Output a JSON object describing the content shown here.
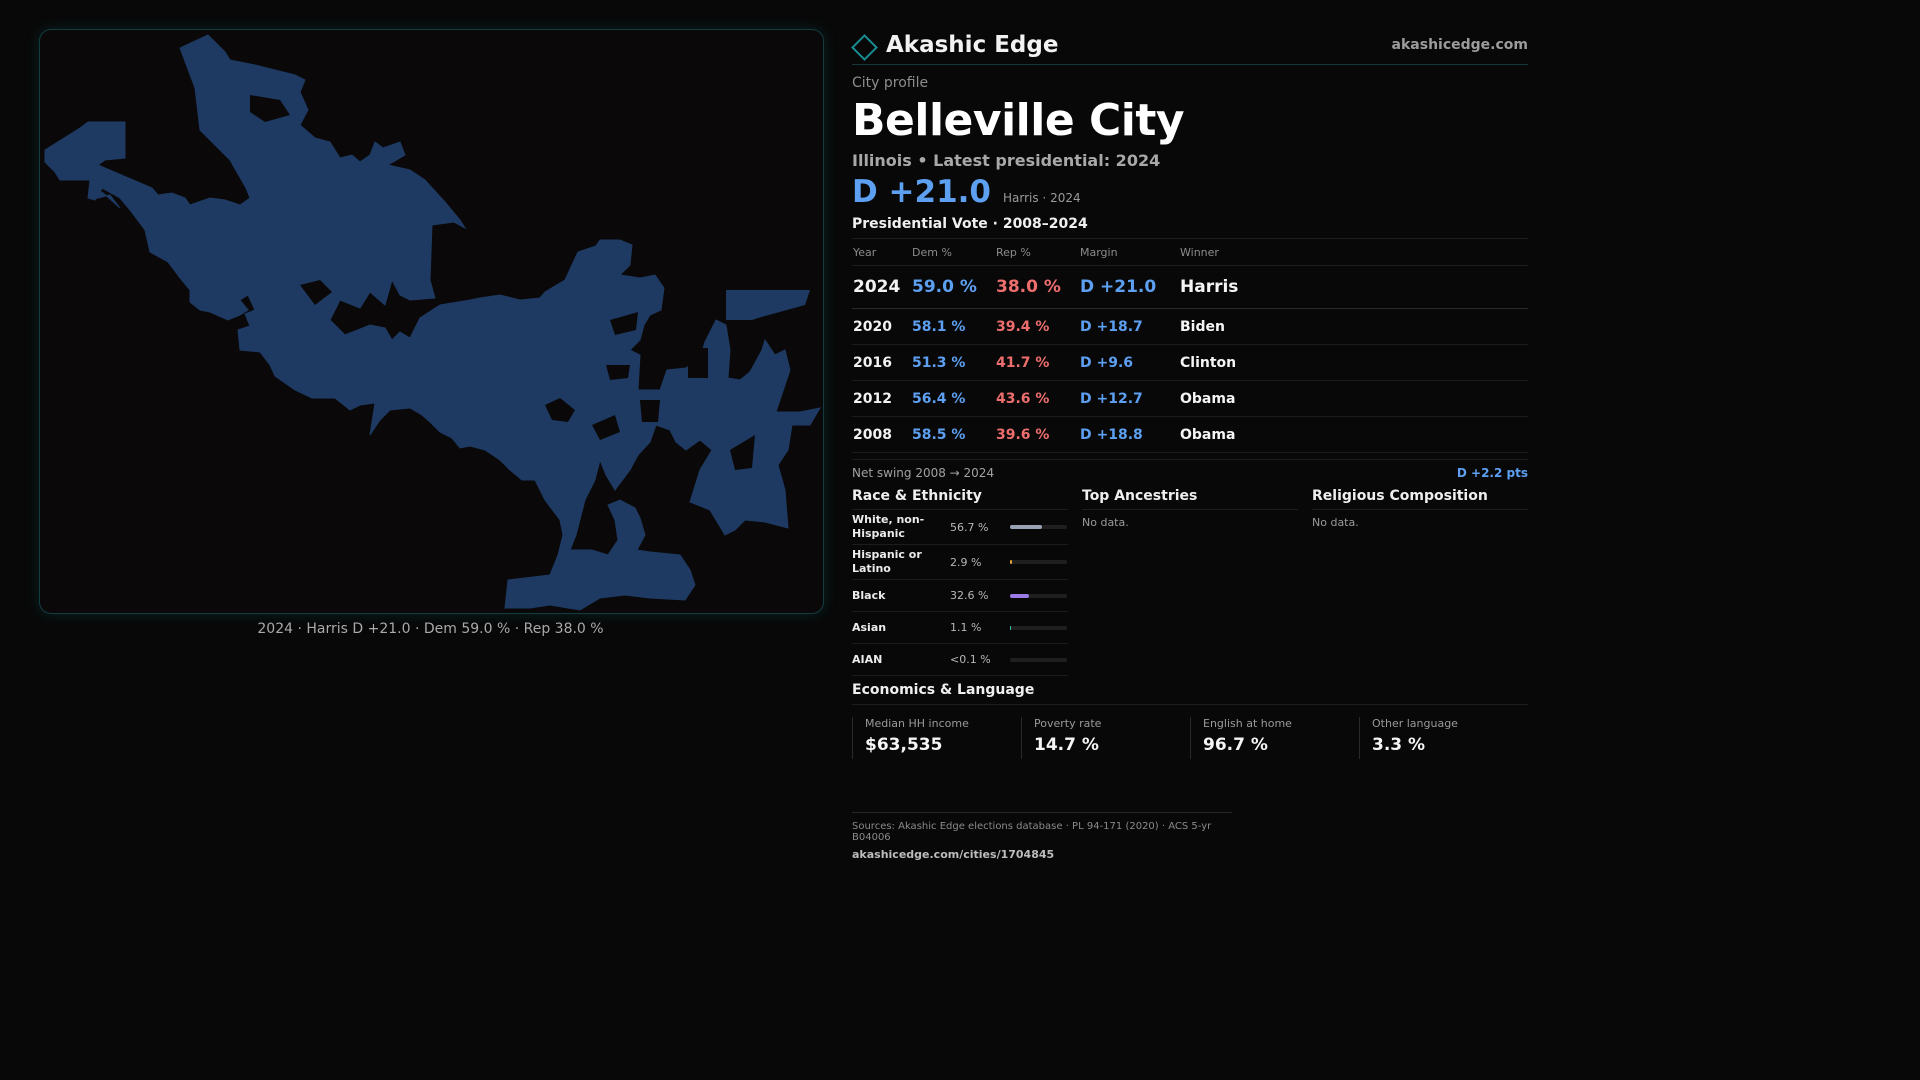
{
  "map": {
    "caption": "2024 · Harris D +21.0 · Dem 59.0 % · Rep 38.0 %",
    "fill_color": "#1e3a62",
    "outline_color": "#123c40"
  },
  "header": {
    "brand": "Akashic Edge",
    "site": "akashicedge.com",
    "logo_icon": "diamond-icon"
  },
  "profile": {
    "kicker": "City profile",
    "title": "Belleville City",
    "subtitle": "Illinois • Latest presidential: 2024",
    "headline_margin": "D +21.0",
    "headline_note": "Harris · 2024"
  },
  "votes": {
    "section_title": "Presidential Vote · 2008–2024",
    "columns": [
      "Year",
      "Dem %",
      "Rep %",
      "Margin",
      "Winner"
    ],
    "rows": [
      {
        "year": "2024",
        "dem": "59.0 %",
        "rep": "38.0 %",
        "margin": "D +21.0",
        "winner": "Harris"
      },
      {
        "year": "2020",
        "dem": "58.1 %",
        "rep": "39.4 %",
        "margin": "D +18.7",
        "winner": "Biden"
      },
      {
        "year": "2016",
        "dem": "51.3 %",
        "rep": "41.7 %",
        "margin": "D +9.6",
        "winner": "Clinton"
      },
      {
        "year": "2012",
        "dem": "56.4 %",
        "rep": "43.6 %",
        "margin": "D +12.7",
        "winner": "Obama"
      },
      {
        "year": "2008",
        "dem": "58.5 %",
        "rep": "39.6 %",
        "margin": "D +18.8",
        "winner": "Obama"
      }
    ],
    "swing_label": "Net swing 2008 → 2024",
    "swing_value": "D +2.2 pts"
  },
  "race": {
    "title": "Race & Ethnicity",
    "items": [
      {
        "label": "White, non-Hispanic",
        "value": "56.7 %",
        "share": 0.567,
        "color": "#9aa3b5"
      },
      {
        "label": "Hispanic or Latino",
        "value": "2.9 %",
        "share": 0.029,
        "color": "#e0a23a"
      },
      {
        "label": "Black",
        "value": "32.6 %",
        "share": 0.326,
        "color": "#9b7be6"
      },
      {
        "label": "Asian",
        "value": "1.1 %",
        "share": 0.011,
        "color": "#3fbfae"
      },
      {
        "label": "AIAN",
        "value": "<0.1 %",
        "share": 0.0,
        "color": "#9aa3b5"
      }
    ]
  },
  "ancestries": {
    "title": "Top Ancestries",
    "empty": "No data."
  },
  "religion": {
    "title": "Religious Composition",
    "empty": "No data."
  },
  "economics": {
    "title": "Economics & Language",
    "items": [
      {
        "label": "Median HH income",
        "value": "$63,535"
      },
      {
        "label": "Poverty rate",
        "value": "14.7 %"
      },
      {
        "label": "English at home",
        "value": "96.7 %"
      },
      {
        "label": "Other language",
        "value": "3.3 %"
      }
    ]
  },
  "footer": {
    "sources": "Sources: Akashic Edge elections database · PL 94-171 (2020) · ACS 5-yr B04006",
    "link": "akashicedge.com/cities/1704845"
  }
}
